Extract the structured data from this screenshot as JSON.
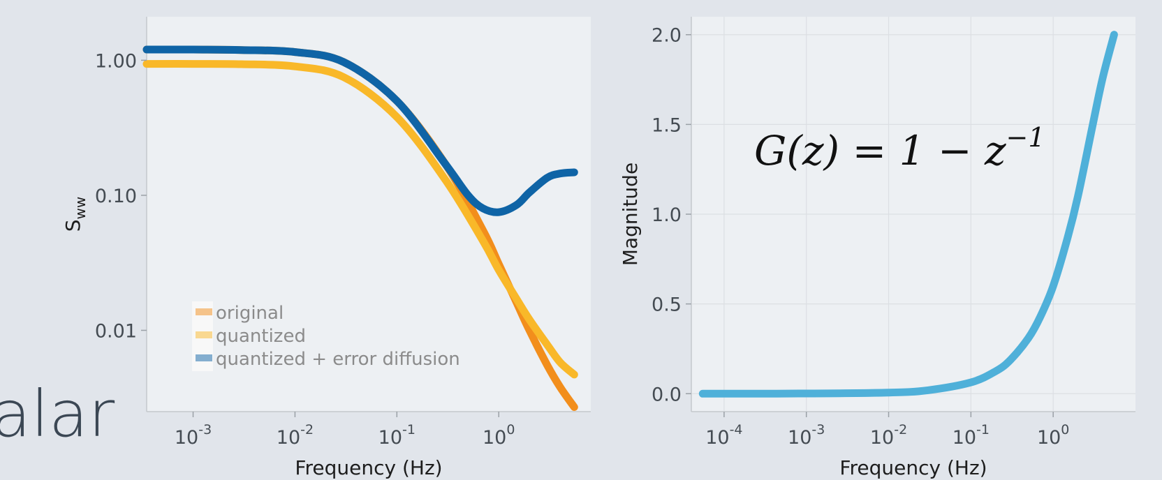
{
  "background_word": "alar",
  "colors": {
    "original": "#f28e1c",
    "quantized": "#f9b829",
    "error_diffusion": "#0f64a6",
    "magnitude": "#4fb0d9"
  },
  "chart_data": [
    {
      "type": "line",
      "title": "",
      "xlabel": "Frequency (Hz)",
      "ylabel": "S",
      "ylabel_sub": "ww",
      "xscale": "log",
      "yscale": "log",
      "xlim": [
        0.00035,
        8
      ],
      "ylim": [
        0.0025,
        2.1
      ],
      "xticks": [
        0.001,
        0.01,
        0.1,
        1
      ],
      "xtick_labels": [
        {
          "base": "10",
          "exp": "-3"
        },
        {
          "base": "10",
          "exp": "-2"
        },
        {
          "base": "10",
          "exp": "-1"
        },
        {
          "base": "10",
          "exp": "0"
        }
      ],
      "yticks": [
        1,
        0.1,
        0.01
      ],
      "ytick_labels": [
        "1.00",
        "0.10",
        "0.01"
      ],
      "grid": false,
      "legend": {
        "position": "lower-left",
        "entries": [
          "original",
          "quantized",
          "quantized + error diffusion"
        ]
      },
      "series": [
        {
          "name": "original",
          "color": "#f28e1c",
          "x": [
            0.00035,
            0.001,
            0.003,
            0.01,
            0.03,
            0.1,
            0.3,
            0.7,
            1,
            1.5,
            2,
            3,
            4,
            5.5
          ],
          "y": [
            1.2,
            1.2,
            1.19,
            1.15,
            0.97,
            0.5,
            0.17,
            0.055,
            0.031,
            0.016,
            0.01,
            0.0055,
            0.0038,
            0.0027
          ]
        },
        {
          "name": "quantized",
          "color": "#f9b829",
          "x": [
            0.00035,
            0.001,
            0.003,
            0.01,
            0.03,
            0.1,
            0.3,
            0.7,
            1,
            1.5,
            2,
            3,
            4,
            5.5
          ],
          "y": [
            0.94,
            0.94,
            0.935,
            0.9,
            0.75,
            0.38,
            0.13,
            0.046,
            0.028,
            0.017,
            0.012,
            0.0078,
            0.0058,
            0.0047
          ]
        },
        {
          "name": "quantized + error diffusion",
          "color": "#0f64a6",
          "x": [
            0.00035,
            0.001,
            0.003,
            0.01,
            0.03,
            0.1,
            0.3,
            0.5,
            0.7,
            1,
            1.5,
            2,
            3,
            4,
            5.5
          ],
          "y": [
            1.2,
            1.2,
            1.19,
            1.15,
            0.97,
            0.5,
            0.17,
            0.1,
            0.08,
            0.075,
            0.085,
            0.105,
            0.135,
            0.145,
            0.148
          ]
        }
      ]
    },
    {
      "type": "line",
      "title": "",
      "annotation": "G(z) = 1 − z",
      "annotation_exp": "−1",
      "xlabel": "Frequency (Hz)",
      "ylabel": "Magnitude",
      "xscale": "log",
      "yscale": "linear",
      "xlim": [
        4e-05,
        10
      ],
      "ylim": [
        -0.1,
        2.1
      ],
      "xticks": [
        0.0001,
        0.001,
        0.01,
        0.1,
        1
      ],
      "xtick_labels": [
        {
          "base": "10",
          "exp": "-4"
        },
        {
          "base": "10",
          "exp": "-3"
        },
        {
          "base": "10",
          "exp": "-2"
        },
        {
          "base": "10",
          "exp": "-1"
        },
        {
          "base": "10",
          "exp": "0"
        }
      ],
      "yticks": [
        0.0,
        0.5,
        1.0,
        1.5,
        2.0
      ],
      "ytick_labels": [
        "0.0",
        "0.5",
        "1.0",
        "1.5",
        "2.0"
      ],
      "grid": true,
      "series": [
        {
          "name": "",
          "color": "#4fb0d9",
          "x": [
            5.5e-05,
            0.0001,
            0.001,
            0.01,
            0.03,
            0.1,
            0.2,
            0.3,
            0.5,
            0.7,
            1,
            1.5,
            2,
            3,
            4,
            5.5
          ],
          "y": [
            0.0,
            0.0,
            0.001,
            0.006,
            0.019,
            0.063,
            0.125,
            0.187,
            0.31,
            0.43,
            0.6,
            0.87,
            1.1,
            1.49,
            1.76,
            2.0
          ]
        }
      ]
    }
  ]
}
